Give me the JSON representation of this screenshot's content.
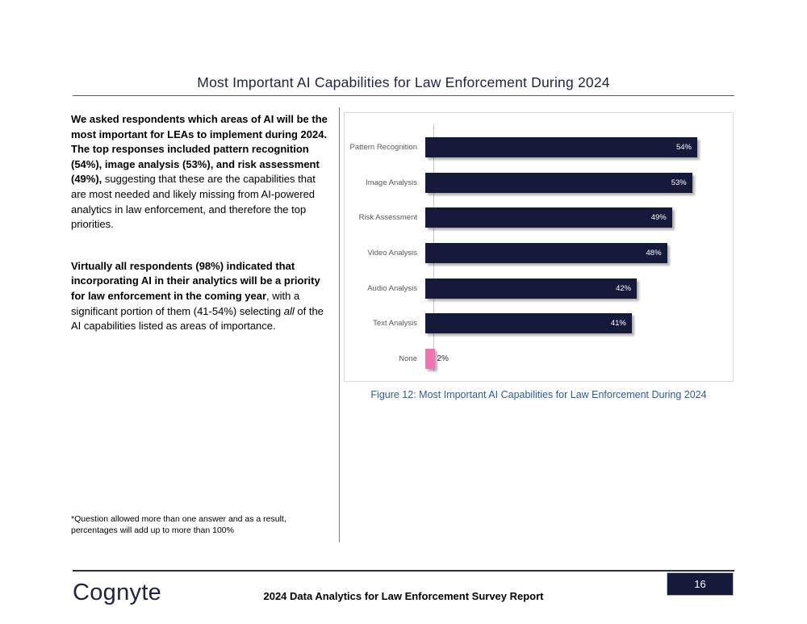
{
  "page": {
    "title": "Most Important AI Capabilities for Law Enforcement During 2024"
  },
  "left_column": {
    "paragraph1": {
      "bold": "We asked respondents which areas of AI will be the most important for LEAs to implement during 2024. The top responses included pattern recognition (54%), image analysis (53%), and risk assessment (49%),",
      "regular": " suggesting that these are the capabilities that are most needed and likely missing from AI-powered analytics in law enforcement, and therefore the top priorities."
    },
    "paragraph2": {
      "bold": "Virtually all respondents (98%) indicated that incorporating AI in their analytics will be a priority for law enforcement in the coming year",
      "regular_before_italic": ", with a significant portion of them (41-54%) selecting ",
      "italic": "all",
      "regular_after_italic": " of the AI capabilities listed as areas of importance."
    },
    "footnote": "*Question allowed more than one answer and as a result, percentages will add up to more than 100%"
  },
  "chart_data": {
    "type": "bar",
    "orientation": "horizontal",
    "categories": [
      "Pattern Recognition",
      "Image Analysis",
      "Risk Assessment",
      "Video Analysis",
      "Audio Analysis",
      "Text Analysis",
      "None"
    ],
    "values": [
      54,
      53,
      49,
      48,
      42,
      41,
      2
    ],
    "value_labels": [
      "54%",
      "53%",
      "49%",
      "48%",
      "42%",
      "41%",
      "2%"
    ],
    "bar_colors": [
      "#151a3a",
      "#151a3a",
      "#151a3a",
      "#151a3a",
      "#151a3a",
      "#151a3a",
      "#f272b2"
    ],
    "title": "",
    "xlabel": "",
    "ylabel": "",
    "xlim": [
      0,
      60
    ],
    "grid": false,
    "legend": false
  },
  "figure_caption": "Figure 12: Most Important AI Capabilities for Law Enforcement During 2024",
  "footer": {
    "logo_text": "Cognyte",
    "report_title": "2024 Data Analytics for Law Enforcement Survey Report",
    "page_number": "16"
  },
  "colors": {
    "bar_navy": "#151a3a",
    "bar_pink": "#f272b2",
    "caption_blue": "#2e5b9e",
    "title_navy": "#1f2240"
  }
}
